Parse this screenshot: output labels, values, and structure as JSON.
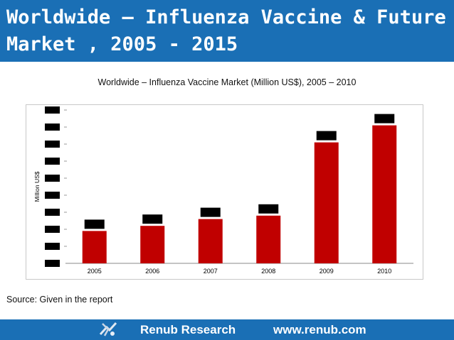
{
  "slide": {
    "title_line1": "Worldwide – Influenza Vaccine & Future",
    "title_line2": "Market , 2005 - 2015",
    "source": "Source: Given in the report"
  },
  "footer": {
    "company": "Renub Research",
    "url": "www.renub.com"
  },
  "colors": {
    "header_bg": "#1a6fb5",
    "bar_fill": "#c00000",
    "redaction": "#000000"
  },
  "chart_data": {
    "type": "bar",
    "title": "Worldwide – Influenza Vaccine Market (Million US$), 2005 – 2010",
    "ylabel": "Million US$",
    "xlabel": "",
    "categories": [
      "2005",
      "2006",
      "2007",
      "2008",
      "2009",
      "2010"
    ],
    "values": [
      1.9,
      2.2,
      2.6,
      2.8,
      7.1,
      8.1
    ],
    "ylim": [
      0,
      9
    ],
    "y_ticks": 9,
    "data_labels_redacted": true,
    "y_tick_labels_redacted": true,
    "grid": false,
    "legend": "none"
  }
}
